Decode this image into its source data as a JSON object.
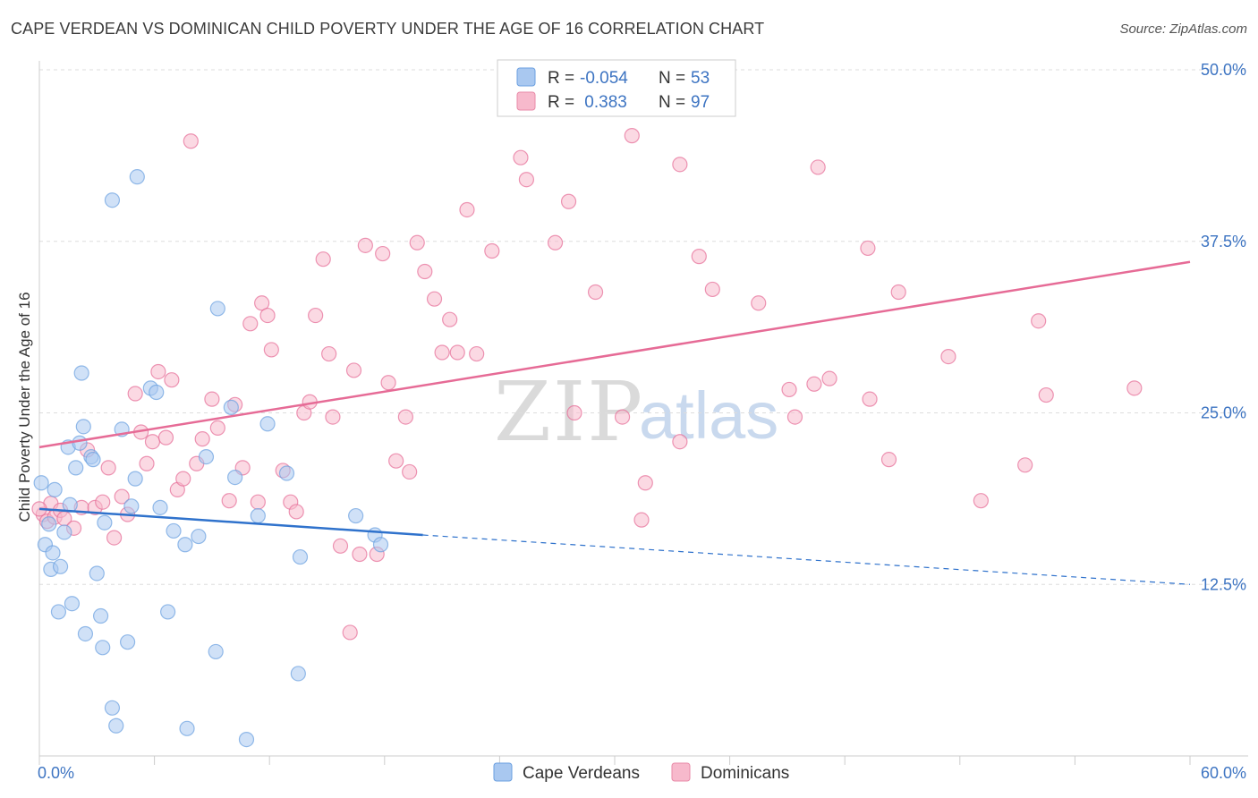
{
  "title": "CAPE VERDEAN VS DOMINICAN CHILD POVERTY UNDER THE AGE OF 16 CORRELATION CHART",
  "source": "Source: ZipAtlas.com",
  "watermark": {
    "zip": "ZIP",
    "atlas": "atlas"
  },
  "legend": {
    "rows": [
      {
        "r_label": "R =",
        "r_value": "-0.054",
        "n_label": "N =",
        "n_value": "53",
        "color": "#a9c8f0"
      },
      {
        "r_label": "R =",
        "r_value": " 0.383",
        "n_label": "N =",
        "n_value": "97",
        "color": "#f7b9cc"
      }
    ]
  },
  "bottom_legend": [
    {
      "label": "Cape Verdeans",
      "color": "#a9c8f0"
    },
    {
      "label": "Dominicans",
      "color": "#f7b9cc"
    }
  ],
  "chart_data": {
    "type": "scatter",
    "title": "CAPE VERDEAN VS DOMINICAN CHILD POVERTY UNDER THE AGE OF 16 CORRELATION CHART",
    "xlabel": "",
    "ylabel": "Child Poverty Under the Age of 16",
    "xlim": [
      0,
      60
    ],
    "ylim": [
      0,
      50
    ],
    "x_tick_labels": [
      "0.0%",
      "60.0%"
    ],
    "y_ticks": [
      12.5,
      25.0,
      37.5,
      50.0
    ],
    "y_tick_labels": [
      "12.5%",
      "25.0%",
      "37.5%",
      "50.0%"
    ],
    "grid": true,
    "legend_position": "top-center",
    "series": [
      {
        "name": "Cape Verdeans",
        "color": "#6a9fe0",
        "fill": "#a9c8f0",
        "r": -0.054,
        "n": 53,
        "trend": {
          "x": [
            0,
            20
          ],
          "y": [
            18.0,
            16.1
          ],
          "dashed_to": {
            "x": 60,
            "y": 12.5
          }
        },
        "points": [
          [
            0.1,
            19.9
          ],
          [
            0.3,
            15.4
          ],
          [
            0.5,
            16.9
          ],
          [
            0.6,
            13.6
          ],
          [
            0.8,
            19.4
          ],
          [
            0.7,
            14.8
          ],
          [
            1.0,
            10.5
          ],
          [
            1.1,
            13.8
          ],
          [
            1.3,
            16.3
          ],
          [
            1.5,
            22.5
          ],
          [
            1.6,
            18.3
          ],
          [
            1.7,
            11.1
          ],
          [
            1.9,
            21.0
          ],
          [
            2.1,
            22.8
          ],
          [
            2.2,
            27.9
          ],
          [
            2.3,
            24.0
          ],
          [
            2.4,
            8.9
          ],
          [
            2.7,
            21.8
          ],
          [
            2.8,
            21.6
          ],
          [
            3.0,
            13.3
          ],
          [
            3.2,
            10.2
          ],
          [
            3.3,
            7.9
          ],
          [
            3.4,
            17.0
          ],
          [
            3.8,
            40.5
          ],
          [
            3.8,
            3.5
          ],
          [
            4.0,
            2.2
          ],
          [
            4.3,
            23.8
          ],
          [
            4.6,
            8.3
          ],
          [
            4.8,
            18.2
          ],
          [
            5.0,
            20.2
          ],
          [
            5.1,
            42.2
          ],
          [
            5.8,
            26.8
          ],
          [
            6.1,
            26.5
          ],
          [
            6.3,
            18.1
          ],
          [
            6.7,
            10.5
          ],
          [
            7.0,
            16.4
          ],
          [
            7.6,
            15.4
          ],
          [
            7.7,
            2.0
          ],
          [
            8.3,
            16.0
          ],
          [
            8.7,
            21.8
          ],
          [
            9.2,
            7.6
          ],
          [
            9.3,
            32.6
          ],
          [
            10.0,
            25.4
          ],
          [
            10.2,
            20.3
          ],
          [
            10.8,
            1.2
          ],
          [
            11.4,
            17.5
          ],
          [
            11.9,
            24.2
          ],
          [
            12.9,
            20.6
          ],
          [
            13.6,
            14.5
          ],
          [
            13.5,
            6.0
          ],
          [
            16.5,
            17.5
          ],
          [
            17.5,
            16.1
          ],
          [
            17.8,
            15.4
          ]
        ]
      },
      {
        "name": "Dominicans",
        "color": "#e66b96",
        "fill": "#f7b9cc",
        "r": 0.383,
        "n": 97,
        "trend": {
          "x": [
            0,
            60
          ],
          "y": [
            22.5,
            36.0
          ]
        },
        "points": [
          [
            0.2,
            17.6
          ],
          [
            0.4,
            17.1
          ],
          [
            0.6,
            18.4
          ],
          [
            0.8,
            17.4
          ],
          [
            1.1,
            17.9
          ],
          [
            1.3,
            17.3
          ],
          [
            1.8,
            16.6
          ],
          [
            2.2,
            18.1
          ],
          [
            2.5,
            22.3
          ],
          [
            2.9,
            18.1
          ],
          [
            3.3,
            18.5
          ],
          [
            3.6,
            21.0
          ],
          [
            3.9,
            15.9
          ],
          [
            4.3,
            18.9
          ],
          [
            4.6,
            17.6
          ],
          [
            5.0,
            26.4
          ],
          [
            5.3,
            23.6
          ],
          [
            5.6,
            21.3
          ],
          [
            5.9,
            22.9
          ],
          [
            6.2,
            28.0
          ],
          [
            6.6,
            23.2
          ],
          [
            6.9,
            27.4
          ],
          [
            7.2,
            19.4
          ],
          [
            7.5,
            20.2
          ],
          [
            7.9,
            44.8
          ],
          [
            8.2,
            21.3
          ],
          [
            8.5,
            23.1
          ],
          [
            9.0,
            26.0
          ],
          [
            9.3,
            23.9
          ],
          [
            9.9,
            18.6
          ],
          [
            10.2,
            25.6
          ],
          [
            10.6,
            21.0
          ],
          [
            11.0,
            31.5
          ],
          [
            11.4,
            18.5
          ],
          [
            11.6,
            33.0
          ],
          [
            11.9,
            32.1
          ],
          [
            12.1,
            29.6
          ],
          [
            12.7,
            20.8
          ],
          [
            13.1,
            18.5
          ],
          [
            13.4,
            17.8
          ],
          [
            13.8,
            25.0
          ],
          [
            14.1,
            25.8
          ],
          [
            14.4,
            32.1
          ],
          [
            14.8,
            36.2
          ],
          [
            15.1,
            29.3
          ],
          [
            15.3,
            24.7
          ],
          [
            15.7,
            15.3
          ],
          [
            16.2,
            9.0
          ],
          [
            16.4,
            28.1
          ],
          [
            16.7,
            14.7
          ],
          [
            17.0,
            37.2
          ],
          [
            17.6,
            14.7
          ],
          [
            17.9,
            36.6
          ],
          [
            18.2,
            27.2
          ],
          [
            18.6,
            21.5
          ],
          [
            19.1,
            24.7
          ],
          [
            19.3,
            20.7
          ],
          [
            19.7,
            37.4
          ],
          [
            20.1,
            35.3
          ],
          [
            20.6,
            33.3
          ],
          [
            21.0,
            29.4
          ],
          [
            21.4,
            31.8
          ],
          [
            21.8,
            29.4
          ],
          [
            22.3,
            39.8
          ],
          [
            22.8,
            29.3
          ],
          [
            23.6,
            36.8
          ],
          [
            25.1,
            43.6
          ],
          [
            25.4,
            42.0
          ],
          [
            26.9,
            37.4
          ],
          [
            27.6,
            40.4
          ],
          [
            27.9,
            25.0
          ],
          [
            29.0,
            33.8
          ],
          [
            30.4,
            24.7
          ],
          [
            30.9,
            45.2
          ],
          [
            31.4,
            17.2
          ],
          [
            31.6,
            19.9
          ],
          [
            33.4,
            43.1
          ],
          [
            33.4,
            22.9
          ],
          [
            34.4,
            36.4
          ],
          [
            35.1,
            34.0
          ],
          [
            37.5,
            33.0
          ],
          [
            39.1,
            26.7
          ],
          [
            39.4,
            24.7
          ],
          [
            40.4,
            27.1
          ],
          [
            40.6,
            42.9
          ],
          [
            41.2,
            27.5
          ],
          [
            43.2,
            37.0
          ],
          [
            43.3,
            26.0
          ],
          [
            44.3,
            21.6
          ],
          [
            44.8,
            33.8
          ],
          [
            47.4,
            29.1
          ],
          [
            49.1,
            18.6
          ],
          [
            51.4,
            21.2
          ],
          [
            52.1,
            31.7
          ],
          [
            52.5,
            26.3
          ],
          [
            57.1,
            26.8
          ],
          [
            0.0,
            18.0
          ]
        ]
      }
    ]
  }
}
